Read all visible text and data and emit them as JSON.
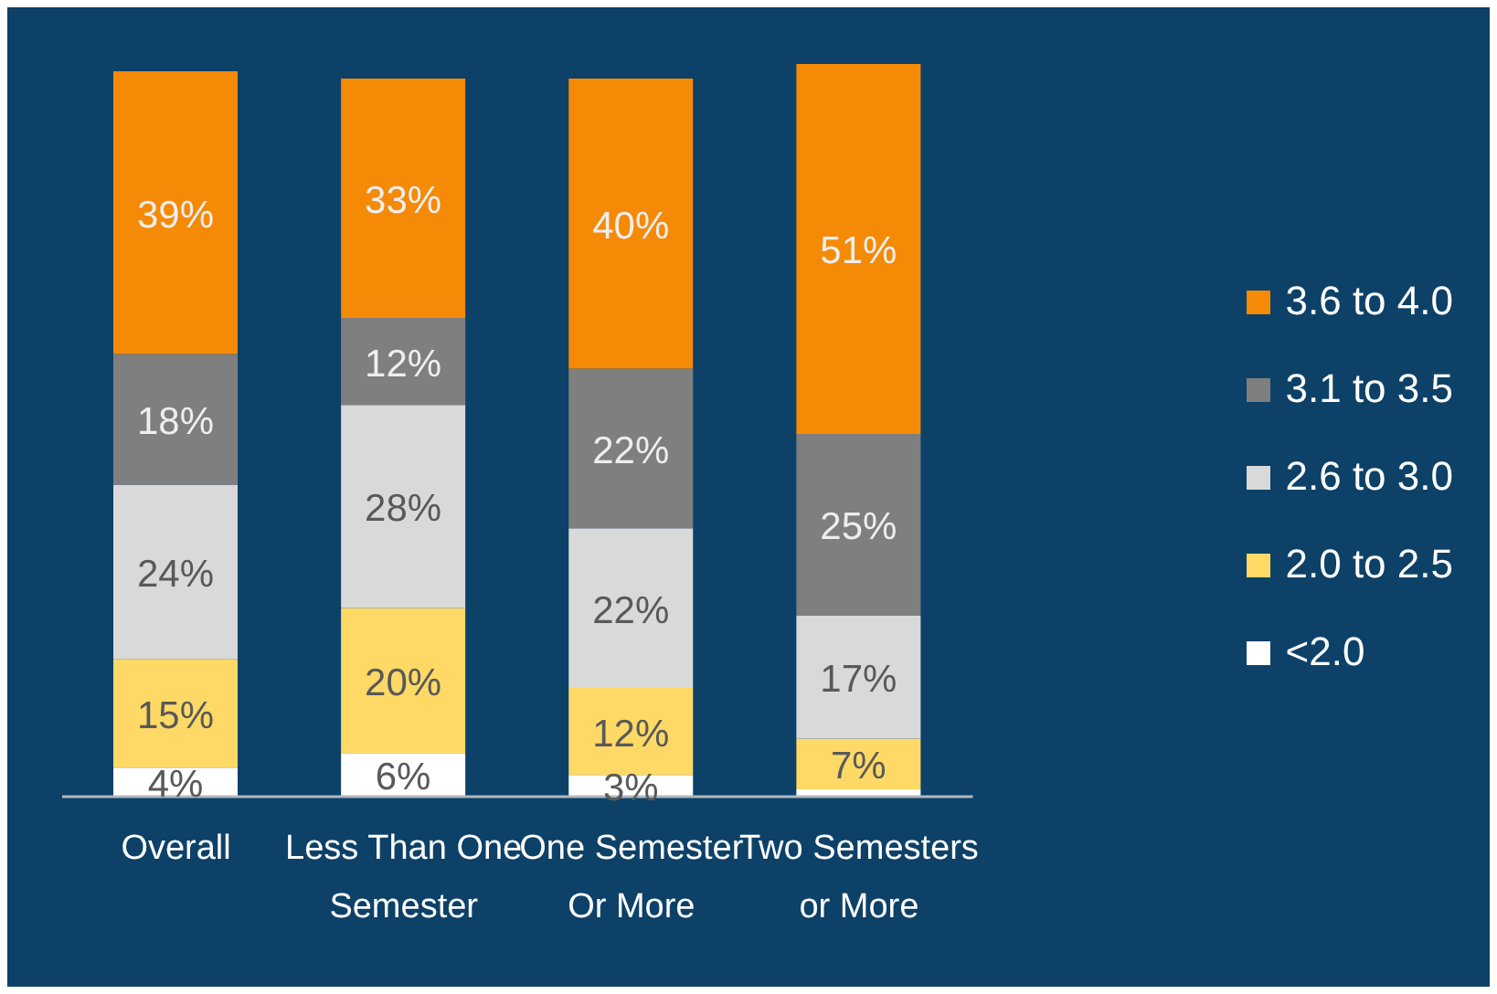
{
  "chart_data": {
    "type": "bar",
    "stacked": true,
    "categories": [
      "Overall",
      "Less Than One Semester",
      "One Semester Or More",
      "Two Semesters or More"
    ],
    "series": [
      {
        "name": "<2.0",
        "color": "#ffffff",
        "values": [
          4,
          6,
          3,
          1
        ],
        "value_labels": [
          "4%",
          "6%",
          "3%",
          null
        ]
      },
      {
        "name": "2.0 to 2.5",
        "color": "#ffd966",
        "values": [
          15,
          20,
          12,
          7
        ],
        "value_labels": [
          "15%",
          "20%",
          "12%",
          "7%"
        ]
      },
      {
        "name": "2.6 to 3.0",
        "color": "#d9d9d9",
        "values": [
          24,
          28,
          22,
          17
        ],
        "value_labels": [
          "24%",
          "28%",
          "22%",
          "17%"
        ]
      },
      {
        "name": "3.1 to 3.5",
        "color": "#7f7f7f",
        "values": [
          18,
          12,
          22,
          25
        ],
        "value_labels": [
          "18%",
          "12%",
          "22%",
          "25%"
        ]
      },
      {
        "name": "3.6 to 4.0",
        "color": "#f58a07",
        "values": [
          39,
          33,
          40,
          51
        ],
        "value_labels": [
          "39%",
          "33%",
          "40%",
          "51%"
        ]
      }
    ],
    "legend": "right"
  }
}
